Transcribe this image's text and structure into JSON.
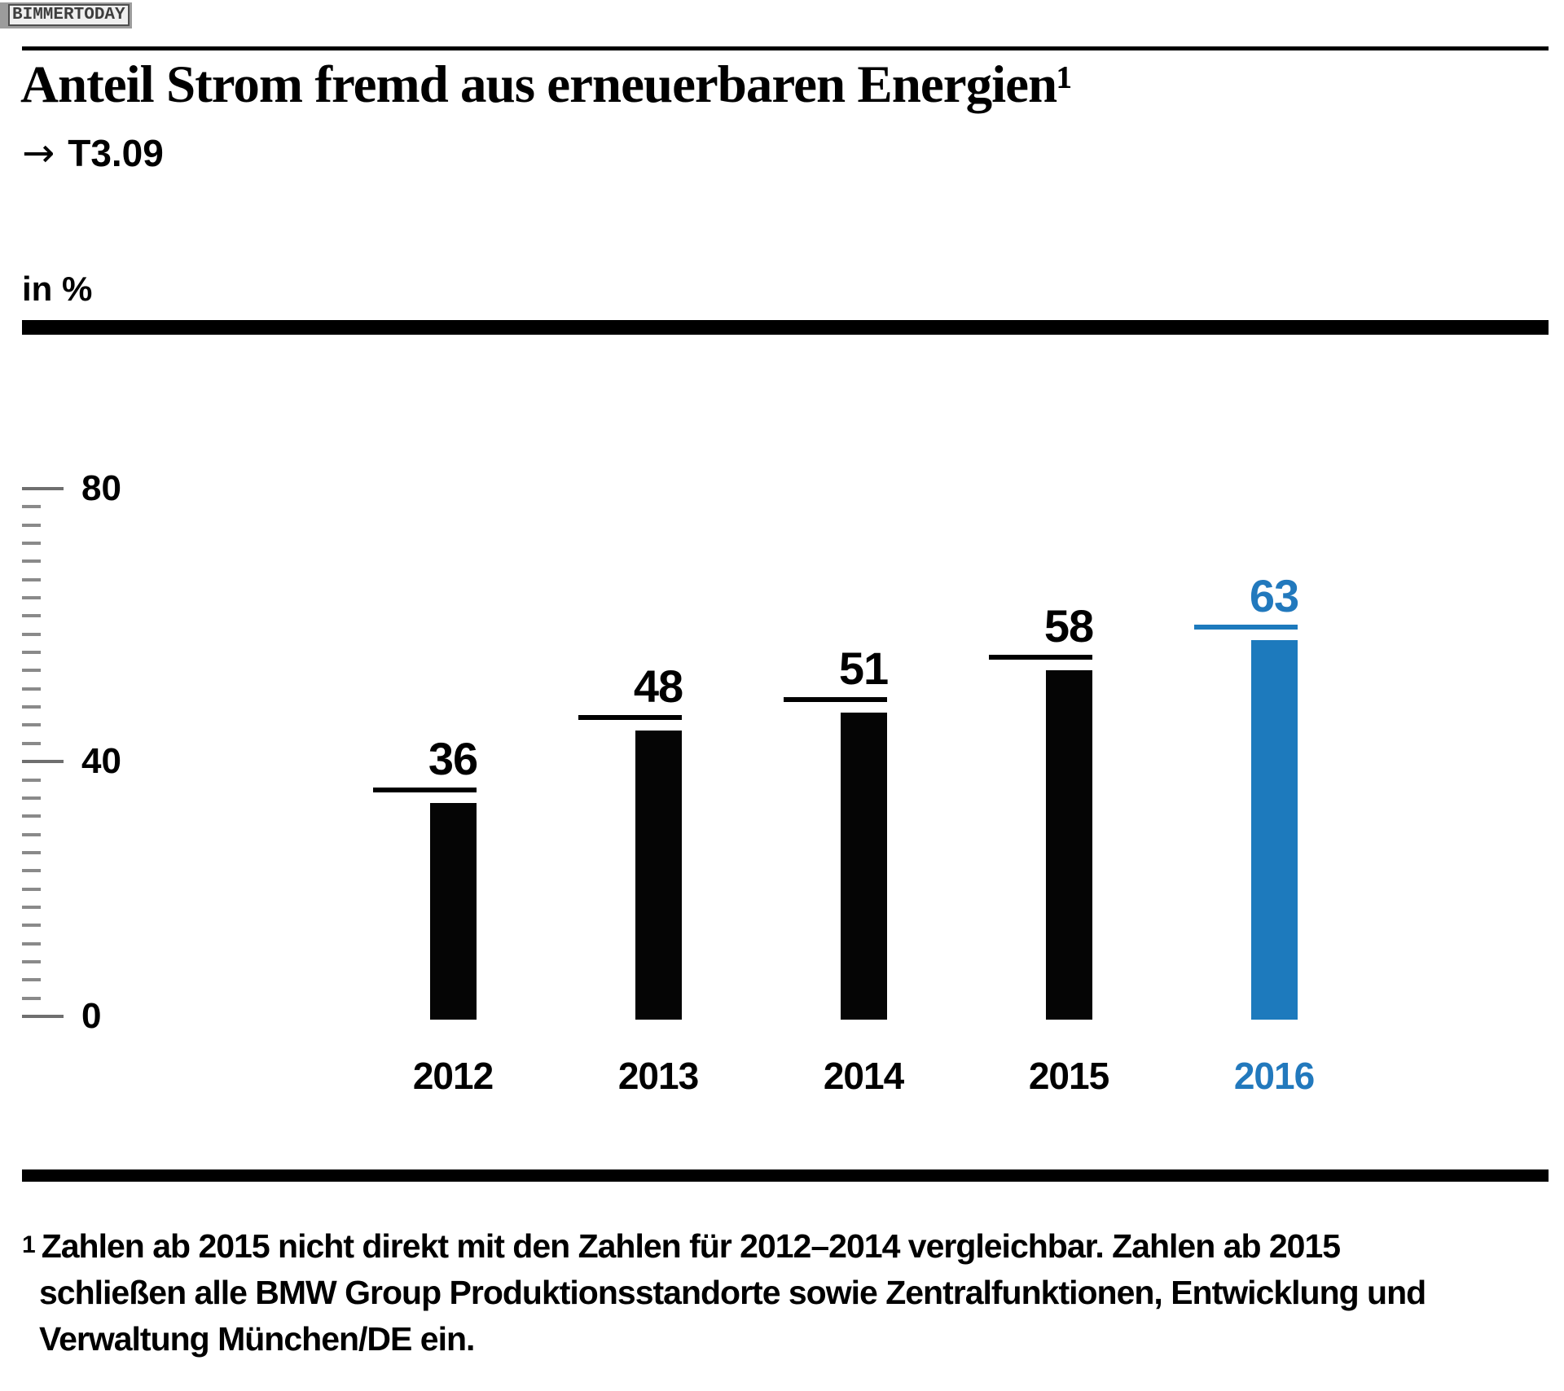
{
  "watermark": "BIMMERTODAY",
  "title": "Anteil Strom fremd aus erneuerbaren Energien¹",
  "figure_ref": {
    "arrow": "→",
    "label": "T3.09"
  },
  "unit_label": "in %",
  "footnote": {
    "marker": "1",
    "lines": [
      "Zahlen ab 2015 nicht direkt mit den Zahlen für 2012–2014 vergleichbar. Zahlen ab 2015",
      "schließen alle BMW Group Produktionsstandorte sowie Zentralfunktionen, Entwicklung und",
      "Verwaltung München/DE ein."
    ]
  },
  "colors": {
    "accent_blue": "#1d7abd",
    "accent_blue_text": "#2279bd",
    "bar_black": "#050505",
    "tick_gray": "#8a8a8a"
  },
  "chart_data": {
    "type": "bar",
    "categories": [
      "2012",
      "2013",
      "2014",
      "2015",
      "2016"
    ],
    "values": [
      36,
      48,
      51,
      58,
      63
    ],
    "highlight_category": "2016",
    "title": "Anteil Strom fremd aus erneuerbaren Energien",
    "footnote_ref": "T3.09",
    "xlabel": "",
    "ylabel": "in %",
    "ylim": [
      0,
      80
    ],
    "yticks": [
      80,
      40,
      0
    ],
    "grid": false,
    "legend": "none",
    "value_labels_shown": true
  }
}
